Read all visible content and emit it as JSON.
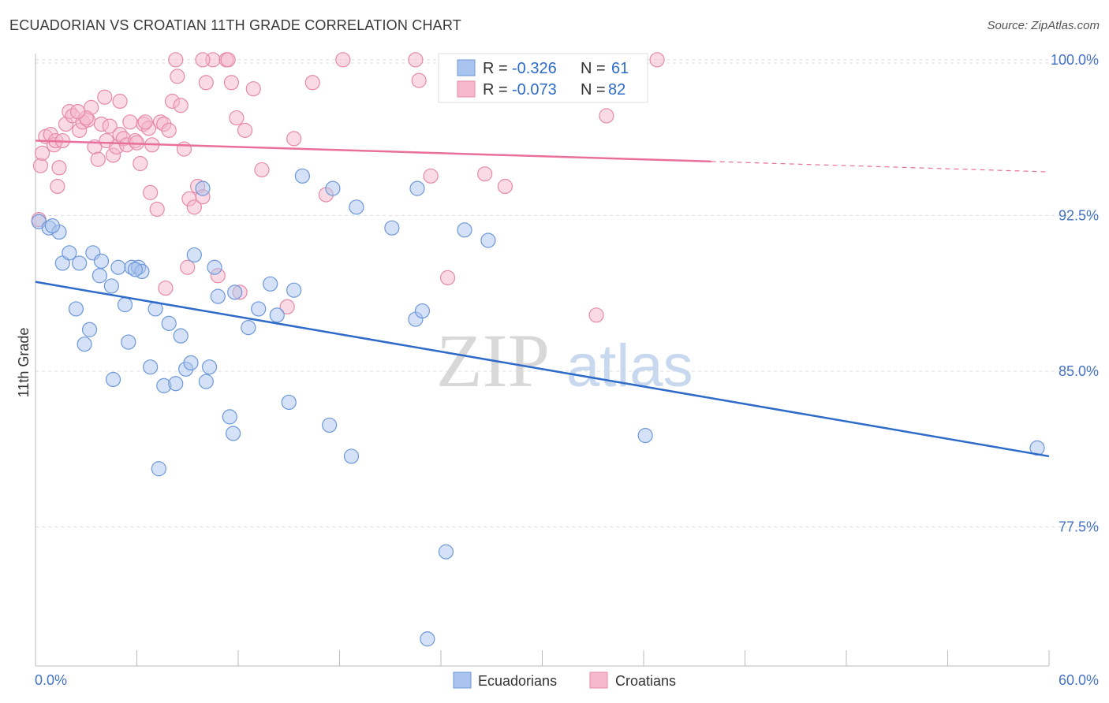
{
  "title": "ECUADORIAN VS CROATIAN 11TH GRADE CORRELATION CHART",
  "source": "Source: ZipAtlas.com",
  "colors": {
    "blue": "#2e6bc9",
    "blue_fill": "#a9c4ee",
    "pink": "#e8709a",
    "pink_fill": "#f5b8cc",
    "tick": "#4472c4",
    "grid": "#dddddd"
  },
  "legend": {
    "blue_r_label": "R =",
    "blue_r_value": "-0.326",
    "blue_n_label": "N =",
    "blue_n_value": "61",
    "pink_r_label": "R =",
    "pink_r_value": "-0.073",
    "pink_n_label": "N =",
    "pink_n_value": "82"
  },
  "bottom_legend": {
    "series1": "Ecuadorians",
    "series2": "Croatians"
  },
  "watermark": {
    "zip": "ZIP",
    "atlas": "atlas"
  },
  "chart_data": {
    "type": "scatter",
    "title": "ECUADORIAN VS CROATIAN 11TH GRADE CORRELATION CHART",
    "xlabel": "",
    "ylabel": "11th Grade",
    "xlim": [
      0,
      60
    ],
    "ylim": [
      70.8,
      100.6
    ],
    "x_tick_labels": [
      "0.0%",
      "60.0%"
    ],
    "y_ticks": [
      77.5,
      85.0,
      92.5,
      100.0
    ],
    "y_tick_labels": [
      "77.5%",
      "85.0%",
      "92.5%",
      "100.0%"
    ],
    "grid": true,
    "legend_position": "top-center",
    "series": [
      {
        "name": "Ecuadorians",
        "color": "#2e6bc9",
        "trend": {
          "x": [
            0,
            60
          ],
          "y": [
            89.3,
            80.9
          ],
          "solid_to": 60
        },
        "points": [
          [
            0.2,
            92.2
          ],
          [
            0.8,
            91.9
          ],
          [
            1.4,
            91.7
          ],
          [
            1.0,
            92.0
          ],
          [
            1.6,
            90.2
          ],
          [
            2.0,
            90.7
          ],
          [
            2.6,
            90.2
          ],
          [
            3.4,
            90.7
          ],
          [
            3.9,
            90.3
          ],
          [
            3.8,
            89.6
          ],
          [
            4.5,
            89.1
          ],
          [
            2.4,
            88.0
          ],
          [
            3.2,
            87.0
          ],
          [
            2.9,
            86.3
          ],
          [
            4.9,
            90.0
          ],
          [
            5.7,
            90.0
          ],
          [
            6.1,
            90.0
          ],
          [
            6.3,
            89.8
          ],
          [
            5.3,
            88.2
          ],
          [
            7.1,
            88.0
          ],
          [
            7.9,
            87.3
          ],
          [
            8.6,
            86.7
          ],
          [
            5.5,
            86.4
          ],
          [
            4.6,
            84.6
          ],
          [
            6.8,
            85.2
          ],
          [
            7.6,
            84.3
          ],
          [
            8.3,
            84.4
          ],
          [
            8.9,
            85.1
          ],
          [
            9.2,
            85.4
          ],
          [
            10.1,
            84.5
          ],
          [
            10.3,
            85.2
          ],
          [
            9.4,
            90.6
          ],
          [
            10.6,
            90.0
          ],
          [
            10.8,
            88.6
          ],
          [
            11.8,
            88.8
          ],
          [
            12.6,
            87.1
          ],
          [
            13.2,
            88.0
          ],
          [
            13.9,
            89.2
          ],
          [
            14.3,
            87.7
          ],
          [
            15.3,
            88.9
          ],
          [
            15.0,
            83.5
          ],
          [
            11.5,
            82.8
          ],
          [
            11.7,
            82.0
          ],
          [
            17.4,
            82.4
          ],
          [
            18.7,
            80.9
          ],
          [
            7.3,
            80.3
          ],
          [
            15.8,
            94.4
          ],
          [
            17.6,
            93.8
          ],
          [
            19.0,
            92.9
          ],
          [
            21.1,
            91.9
          ],
          [
            22.6,
            93.8
          ],
          [
            22.5,
            87.5
          ],
          [
            22.9,
            87.9
          ],
          [
            24.3,
            76.3
          ],
          [
            25.4,
            91.8
          ],
          [
            26.8,
            91.3
          ],
          [
            36.1,
            81.9
          ],
          [
            59.3,
            81.3
          ],
          [
            23.2,
            72.1
          ],
          [
            9.9,
            93.8
          ],
          [
            5.9,
            89.9
          ]
        ]
      },
      {
        "name": "Croatians",
        "color": "#e8709a",
        "trend": {
          "x": [
            0,
            60
          ],
          "y": [
            96.1,
            94.6
          ],
          "solid_to": 40
        },
        "points": [
          [
            0.3,
            94.9
          ],
          [
            0.4,
            95.5
          ],
          [
            0.6,
            96.3
          ],
          [
            0.9,
            96.4
          ],
          [
            1.1,
            95.9
          ],
          [
            1.2,
            96.1
          ],
          [
            0.2,
            92.3
          ],
          [
            1.4,
            94.8
          ],
          [
            1.6,
            96.1
          ],
          [
            1.8,
            96.9
          ],
          [
            2.0,
            97.5
          ],
          [
            2.2,
            97.3
          ],
          [
            2.6,
            96.6
          ],
          [
            2.8,
            97.0
          ],
          [
            3.1,
            97.1
          ],
          [
            3.3,
            97.7
          ],
          [
            3.5,
            95.8
          ],
          [
            3.7,
            95.2
          ],
          [
            3.9,
            96.9
          ],
          [
            4.2,
            96.1
          ],
          [
            4.4,
            96.8
          ],
          [
            4.6,
            95.4
          ],
          [
            4.8,
            95.8
          ],
          [
            5.0,
            96.4
          ],
          [
            5.2,
            96.2
          ],
          [
            5.4,
            95.9
          ],
          [
            5.0,
            98.0
          ],
          [
            5.6,
            97.0
          ],
          [
            5.9,
            96.1
          ],
          [
            6.0,
            96.0
          ],
          [
            6.2,
            95.0
          ],
          [
            6.4,
            96.9
          ],
          [
            6.7,
            96.7
          ],
          [
            6.9,
            95.9
          ],
          [
            6.8,
            93.6
          ],
          [
            7.4,
            97.0
          ],
          [
            7.6,
            96.9
          ],
          [
            7.9,
            96.6
          ],
          [
            8.1,
            98.0
          ],
          [
            8.4,
            99.2
          ],
          [
            8.6,
            97.8
          ],
          [
            8.8,
            95.7
          ],
          [
            9.1,
            93.3
          ],
          [
            9.4,
            92.9
          ],
          [
            9.6,
            93.9
          ],
          [
            9.9,
            93.4
          ],
          [
            10.1,
            98.9
          ],
          [
            10.5,
            100.0
          ],
          [
            11.3,
            100.0
          ],
          [
            11.6,
            98.9
          ],
          [
            11.9,
            97.2
          ],
          [
            12.4,
            96.6
          ],
          [
            12.9,
            98.6
          ],
          [
            13.4,
            94.7
          ],
          [
            14.9,
            88.1
          ],
          [
            15.3,
            96.2
          ],
          [
            16.4,
            98.9
          ],
          [
            17.2,
            93.5
          ],
          [
            18.2,
            100.0
          ],
          [
            22.5,
            100.0
          ],
          [
            22.7,
            99.0
          ],
          [
            23.4,
            94.4
          ],
          [
            24.4,
            89.5
          ],
          [
            26.6,
            94.5
          ],
          [
            27.8,
            93.9
          ],
          [
            33.2,
            87.7
          ],
          [
            33.8,
            97.3
          ],
          [
            35.0,
            99.3
          ],
          [
            36.8,
            100.0
          ],
          [
            8.3,
            100.0
          ],
          [
            9.9,
            100.0
          ],
          [
            11.4,
            100.0
          ],
          [
            7.2,
            92.8
          ],
          [
            7.7,
            89.0
          ],
          [
            3.0,
            97.2
          ],
          [
            6.5,
            97.0
          ],
          [
            4.1,
            98.2
          ],
          [
            2.5,
            97.5
          ],
          [
            1.3,
            93.9
          ],
          [
            12.1,
            88.8
          ],
          [
            10.8,
            89.6
          ],
          [
            9.0,
            90.0
          ]
        ]
      }
    ]
  }
}
